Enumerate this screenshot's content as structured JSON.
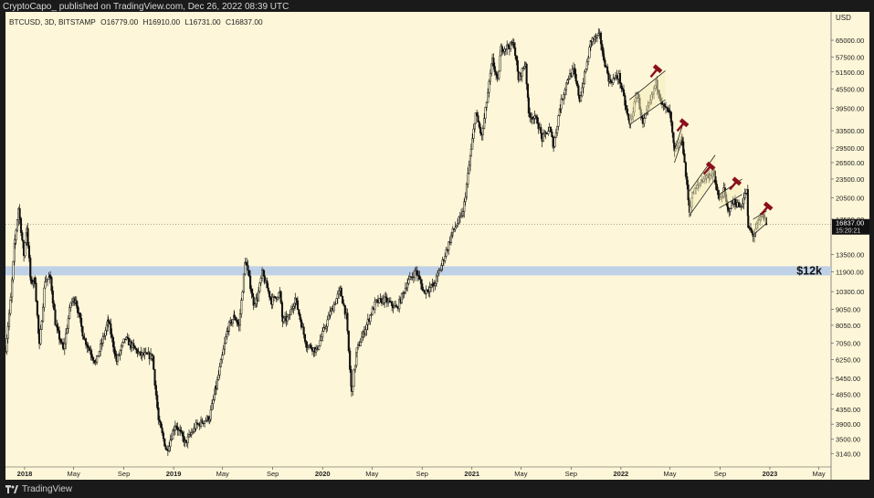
{
  "header": {
    "publish_text": "CryptoCapo_ published on TradingView.com, Dec 26, 2022 08:39 UTC",
    "symbol": "BTCUSD, 3D, BITSTAMP",
    "open": "O16779.00",
    "high": "H16910.00",
    "low": "L16731.00",
    "close": "C16837.00"
  },
  "footer": {
    "brand": "TradingView"
  },
  "currency": "USD",
  "colors": {
    "background": "#fdf6d8",
    "candles": "#111111",
    "support_zone": "#b8cde8",
    "marker": "#8b0f1c",
    "frame": "#1a1a1a"
  },
  "annotation": {
    "label": "$12k"
  },
  "price_badge": {
    "price": "16837.00",
    "countdown": "15:20:21"
  },
  "chart_data": {
    "type": "line",
    "title": "",
    "xlabel": "",
    "ylabel": "",
    "x_tick_labels": [
      "2018",
      "May",
      "Sep",
      "2019",
      "May",
      "Sep",
      "2020",
      "May",
      "Sep",
      "2021",
      "May",
      "Sep",
      "2022",
      "May",
      "Sep",
      "2023",
      "May"
    ],
    "x_tick_dates": [
      "2018-01-01",
      "2018-05-01",
      "2018-09-01",
      "2019-01-01",
      "2019-05-01",
      "2019-09-01",
      "2020-01-01",
      "2020-05-01",
      "2020-09-01",
      "2021-01-01",
      "2021-05-01",
      "2021-09-01",
      "2022-01-01",
      "2022-05-01",
      "2022-09-01",
      "2023-01-01",
      "2023-05-01"
    ],
    "y_ticks": [
      65000,
      57500,
      51500,
      45500,
      39500,
      33500,
      29500,
      26500,
      23500,
      20500,
      17500,
      13500,
      11900,
      10300,
      9050,
      8050,
      7050,
      6250,
      5450,
      4850,
      4350,
      3900,
      3500,
      3140
    ],
    "y_tick_labels": [
      "65000.00",
      "57500.00",
      "51500.00",
      "45500.00",
      "39500.00",
      "33500.00",
      "29500.00",
      "26500.00",
      "23500.00",
      "20500.00",
      "17500.00",
      "13500.00",
      "11900.00",
      "10300.00",
      "9050.00",
      "8050.00",
      "7050.00",
      "6250.00",
      "5450.00",
      "4850.00",
      "4350.00",
      "3900.00",
      "3500.00",
      "3140.00"
    ],
    "y_scale": "log",
    "xlim": [
      "2017-11-15",
      "2023-05-31"
    ],
    "ylim": [
      2850,
      80000
    ],
    "grid": false,
    "support_zone": [
      11600,
      12400
    ],
    "series": [
      {
        "points": [
          [
            "2017-11-15",
            6800
          ],
          [
            "2017-11-28",
            9800
          ],
          [
            "2017-12-08",
            15000
          ],
          [
            "2017-12-17",
            19000
          ],
          [
            "2017-12-30",
            13500
          ],
          [
            "2018-01-06",
            16500
          ],
          [
            "2018-01-16",
            11000
          ],
          [
            "2018-01-26",
            11200
          ],
          [
            "2018-02-06",
            6900
          ],
          [
            "2018-02-20",
            11200
          ],
          [
            "2018-03-05",
            11400
          ],
          [
            "2018-03-18",
            8000
          ],
          [
            "2018-04-06",
            6700
          ],
          [
            "2018-04-24",
            9500
          ],
          [
            "2018-05-05",
            9800
          ],
          [
            "2018-05-25",
            7400
          ],
          [
            "2018-06-24",
            6100
          ],
          [
            "2018-07-25",
            8300
          ],
          [
            "2018-08-14",
            6200
          ],
          [
            "2018-09-04",
            7300
          ],
          [
            "2018-10-10",
            6500
          ],
          [
            "2018-11-10",
            6400
          ],
          [
            "2018-11-25",
            4000
          ],
          [
            "2018-12-15",
            3200
          ],
          [
            "2019-01-05",
            3900
          ],
          [
            "2019-01-30",
            3400
          ],
          [
            "2019-02-25",
            3850
          ],
          [
            "2019-03-30",
            4100
          ],
          [
            "2019-04-15",
            5100
          ],
          [
            "2019-05-14",
            7900
          ],
          [
            "2019-05-30",
            8600
          ],
          [
            "2019-06-10",
            8000
          ],
          [
            "2019-06-26",
            13000
          ],
          [
            "2019-07-16",
            9500
          ],
          [
            "2019-07-25",
            9800
          ],
          [
            "2019-08-06",
            11800
          ],
          [
            "2019-08-29",
            9600
          ],
          [
            "2019-09-18",
            10200
          ],
          [
            "2019-09-25",
            8300
          ],
          [
            "2019-10-10",
            8500
          ],
          [
            "2019-10-26",
            9800
          ],
          [
            "2019-11-22",
            7000
          ],
          [
            "2019-12-17",
            6700
          ],
          [
            "2020-01-20",
            8800
          ],
          [
            "2020-02-13",
            10400
          ],
          [
            "2020-02-28",
            8600
          ],
          [
            "2020-03-12",
            4900
          ],
          [
            "2020-03-25",
            6700
          ],
          [
            "2020-04-29",
            8800
          ],
          [
            "2020-05-10",
            9500
          ],
          [
            "2020-06-01",
            9700
          ],
          [
            "2020-07-01",
            9100
          ],
          [
            "2020-07-27",
            11000
          ],
          [
            "2020-08-17",
            12000
          ],
          [
            "2020-09-05",
            10300
          ],
          [
            "2020-09-30",
            10800
          ],
          [
            "2020-10-21",
            12800
          ],
          [
            "2020-11-15",
            16000
          ],
          [
            "2020-12-10",
            18300
          ],
          [
            "2020-12-30",
            29000
          ],
          [
            "2021-01-10",
            38000
          ],
          [
            "2021-01-25",
            32000
          ],
          [
            "2021-02-20",
            56000
          ],
          [
            "2021-03-05",
            48000
          ],
          [
            "2021-03-13",
            61000
          ],
          [
            "2021-04-14",
            63000
          ],
          [
            "2021-04-25",
            49000
          ],
          [
            "2021-05-12",
            55000
          ],
          [
            "2021-05-20",
            38000
          ],
          [
            "2021-06-10",
            36000
          ],
          [
            "2021-06-22",
            31500
          ],
          [
            "2021-07-10",
            34000
          ],
          [
            "2021-07-20",
            30000
          ],
          [
            "2021-08-05",
            40000
          ],
          [
            "2021-08-23",
            49000
          ],
          [
            "2021-09-07",
            52000
          ],
          [
            "2021-09-22",
            42000
          ],
          [
            "2021-10-10",
            55000
          ],
          [
            "2021-10-20",
            65000
          ],
          [
            "2021-11-10",
            67000
          ],
          [
            "2021-11-20",
            57000
          ],
          [
            "2021-12-04",
            48000
          ],
          [
            "2021-12-27",
            50000
          ],
          [
            "2022-01-22",
            35000
          ],
          [
            "2022-02-10",
            44000
          ],
          [
            "2022-02-24",
            35000
          ],
          [
            "2022-03-28",
            47500
          ],
          [
            "2022-04-15",
            40000
          ],
          [
            "2022-05-01",
            38000
          ],
          [
            "2022-05-12",
            28500
          ],
          [
            "2022-05-31",
            31500
          ],
          [
            "2022-06-18",
            18500
          ],
          [
            "2022-06-25",
            21000
          ],
          [
            "2022-07-20",
            23500
          ],
          [
            "2022-07-30",
            24000
          ],
          [
            "2022-08-15",
            24500
          ],
          [
            "2022-08-30",
            20000
          ],
          [
            "2022-09-10",
            21500
          ],
          [
            "2022-09-20",
            18700
          ],
          [
            "2022-10-05",
            20000
          ],
          [
            "2022-10-20",
            19100
          ],
          [
            "2022-11-05",
            21500
          ],
          [
            "2022-11-09",
            16500
          ],
          [
            "2022-11-21",
            15600
          ],
          [
            "2022-12-05",
            17300
          ],
          [
            "2022-12-14",
            18000
          ],
          [
            "2022-12-26",
            16837
          ]
        ]
      }
    ],
    "channels": [
      {
        "start_date": "2022-01-22",
        "end_date": "2022-04-20",
        "lower": [
          35000,
          42000
        ],
        "upper": [
          42000,
          52000
        ]
      },
      {
        "start_date": "2022-05-12",
        "end_date": "2022-06-03",
        "lower": [
          26500,
          32000
        ],
        "upper": [
          29000,
          35500
        ]
      },
      {
        "start_date": "2022-06-18",
        "end_date": "2022-08-20",
        "lower": [
          18000,
          23500
        ],
        "upper": [
          21500,
          28000
        ]
      },
      {
        "start_date": "2022-08-30",
        "end_date": "2022-10-25",
        "lower": [
          19000,
          21000
        ],
        "upper": [
          21000,
          23500
        ]
      },
      {
        "start_date": "2022-11-21",
        "end_date": "2022-12-24",
        "lower": [
          15600,
          17000
        ],
        "upper": [
          17500,
          18600
        ]
      }
    ],
    "markers": [
      {
        "date": "2022-03-28",
        "price": 52000
      },
      {
        "date": "2022-06-01",
        "price": 35000
      },
      {
        "date": "2022-08-05",
        "price": 25500
      },
      {
        "date": "2022-10-08",
        "price": 22800
      },
      {
        "date": "2022-12-24",
        "price": 19000
      }
    ]
  }
}
